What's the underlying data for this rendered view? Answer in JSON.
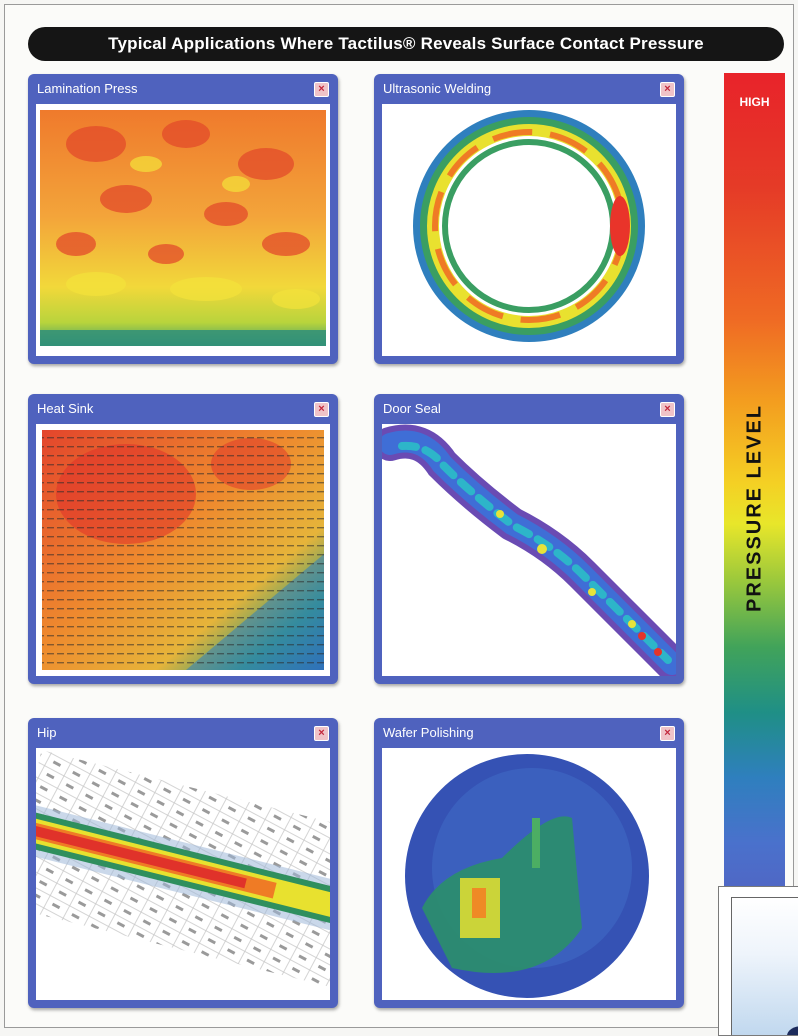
{
  "banner": {
    "title": "Typical Applications Where Tactilus® Reveals Surface Contact Pressure"
  },
  "panels": [
    {
      "title": "Lamination Press",
      "close_glyph": "×"
    },
    {
      "title": "Ultrasonic Welding",
      "close_glyph": "×"
    },
    {
      "title": "Heat Sink",
      "close_glyph": "×"
    },
    {
      "title": "Door Seal",
      "close_glyph": "×"
    },
    {
      "title": "Hip",
      "close_glyph": "×"
    },
    {
      "title": "Wafer Polishing",
      "close_glyph": "×"
    }
  ],
  "scale": {
    "high_label": "HIGH",
    "axis_label": "PRESSURE LEVEL"
  },
  "icons": {
    "close": "close-icon"
  },
  "colors": {
    "panel_frame": "#4f62be",
    "banner_bg": "#151515",
    "pressure_high": "#e8232a",
    "pressure_low": "#5066c4"
  }
}
